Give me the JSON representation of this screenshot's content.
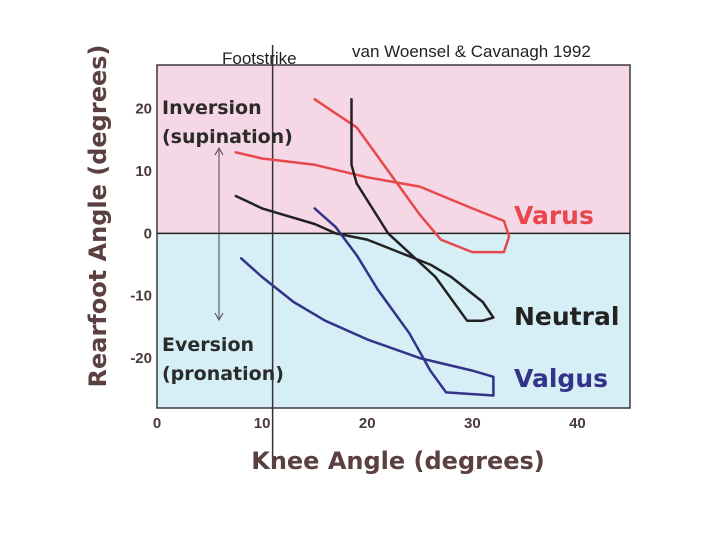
{
  "chart_data": {
    "type": "line",
    "credit": "van Woensel & Cavanagh 1992",
    "xlabel": "Knee Angle (degrees)",
    "ylabel": "Rearfoot Angle (degrees)",
    "xlim": [
      0,
      45
    ],
    "ylim": [
      -28,
      27
    ],
    "x_ticks": [
      0,
      10,
      20,
      30,
      40
    ],
    "y_ticks": [
      20,
      10,
      0,
      -10,
      -20
    ],
    "regions": [
      {
        "name": "inversion",
        "y_range": [
          0,
          27
        ],
        "color": "#f6d7e6"
      },
      {
        "name": "eversion",
        "y_range": [
          -28,
          0
        ],
        "color": "#d6eef6"
      }
    ],
    "annotations": {
      "inversion": [
        "Inversion",
        "(supination)"
      ],
      "eversion": [
        "Eversion",
        "(pronation)"
      ],
      "footstrike": "Footstrike",
      "footstrike_x": 11
    },
    "series": [
      {
        "name": "Varus",
        "color": "#e8474b",
        "points": [
          [
            7.5,
            13
          ],
          [
            10,
            12
          ],
          [
            15,
            11
          ],
          [
            20,
            9
          ],
          [
            25,
            7.5
          ],
          [
            30,
            4
          ],
          [
            33,
            2
          ],
          [
            33.5,
            -0.5
          ],
          [
            33,
            -3
          ],
          [
            30,
            -3
          ],
          [
            27,
            -1
          ],
          [
            25,
            3
          ],
          [
            22,
            10
          ],
          [
            19,
            17
          ],
          [
            15,
            21.5
          ]
        ]
      },
      {
        "name": "Neutral",
        "color": "#222222",
        "points": [
          [
            7.5,
            6
          ],
          [
            10,
            4
          ],
          [
            12,
            3
          ],
          [
            15,
            1.5
          ],
          [
            17,
            0
          ],
          [
            20,
            -1
          ],
          [
            23,
            -3
          ],
          [
            26,
            -5
          ],
          [
            28,
            -7
          ],
          [
            31,
            -11
          ],
          [
            32,
            -13.5
          ],
          [
            31,
            -14
          ],
          [
            29.5,
            -14
          ],
          [
            26.5,
            -7
          ],
          [
            22,
            0
          ],
          [
            19,
            8
          ],
          [
            18.5,
            11
          ],
          [
            18.5,
            14
          ],
          [
            18.5,
            21.5
          ]
        ]
      },
      {
        "name": "Valgus",
        "color": "#33338a",
        "points": [
          [
            8,
            -4
          ],
          [
            10,
            -7
          ],
          [
            13,
            -11
          ],
          [
            16,
            -14
          ],
          [
            20,
            -17
          ],
          [
            25,
            -20
          ],
          [
            30,
            -22
          ],
          [
            32,
            -23
          ],
          [
            32,
            -26
          ],
          [
            27.5,
            -25.5
          ],
          [
            26,
            -22
          ],
          [
            24,
            -16
          ],
          [
            21,
            -9
          ],
          [
            19,
            -3.5
          ],
          [
            17,
            1
          ],
          [
            16,
            2.5
          ],
          [
            15,
            4
          ]
        ]
      }
    ]
  }
}
